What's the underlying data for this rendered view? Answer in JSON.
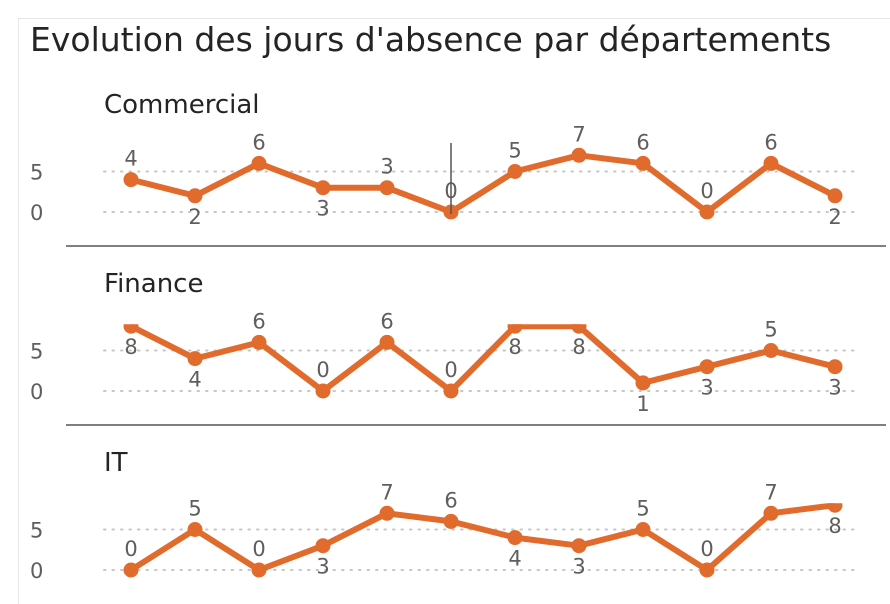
{
  "title": "Evolution des jours d'absence par départements",
  "colors": {
    "line": "#e06b2d",
    "label": "#605e5c",
    "text": "#252423",
    "grid": "#c8c6c4",
    "separator": "#333333"
  },
  "chart_data": {
    "type": "line",
    "title": "Evolution des jours d'absence par départements",
    "y_ticks": [
      0,
      5
    ],
    "grid": "dotted",
    "panels": [
      {
        "name": "Commercial",
        "values": [
          4,
          2,
          6,
          3,
          3,
          0,
          5,
          7,
          6,
          0,
          6,
          2
        ]
      },
      {
        "name": "Finance",
        "values": [
          8,
          4,
          6,
          0,
          6,
          0,
          8,
          8,
          1,
          3,
          5,
          3
        ]
      },
      {
        "name": "IT",
        "values": [
          0,
          5,
          0,
          3,
          7,
          6,
          4,
          3,
          5,
          0,
          7,
          8
        ]
      }
    ]
  }
}
